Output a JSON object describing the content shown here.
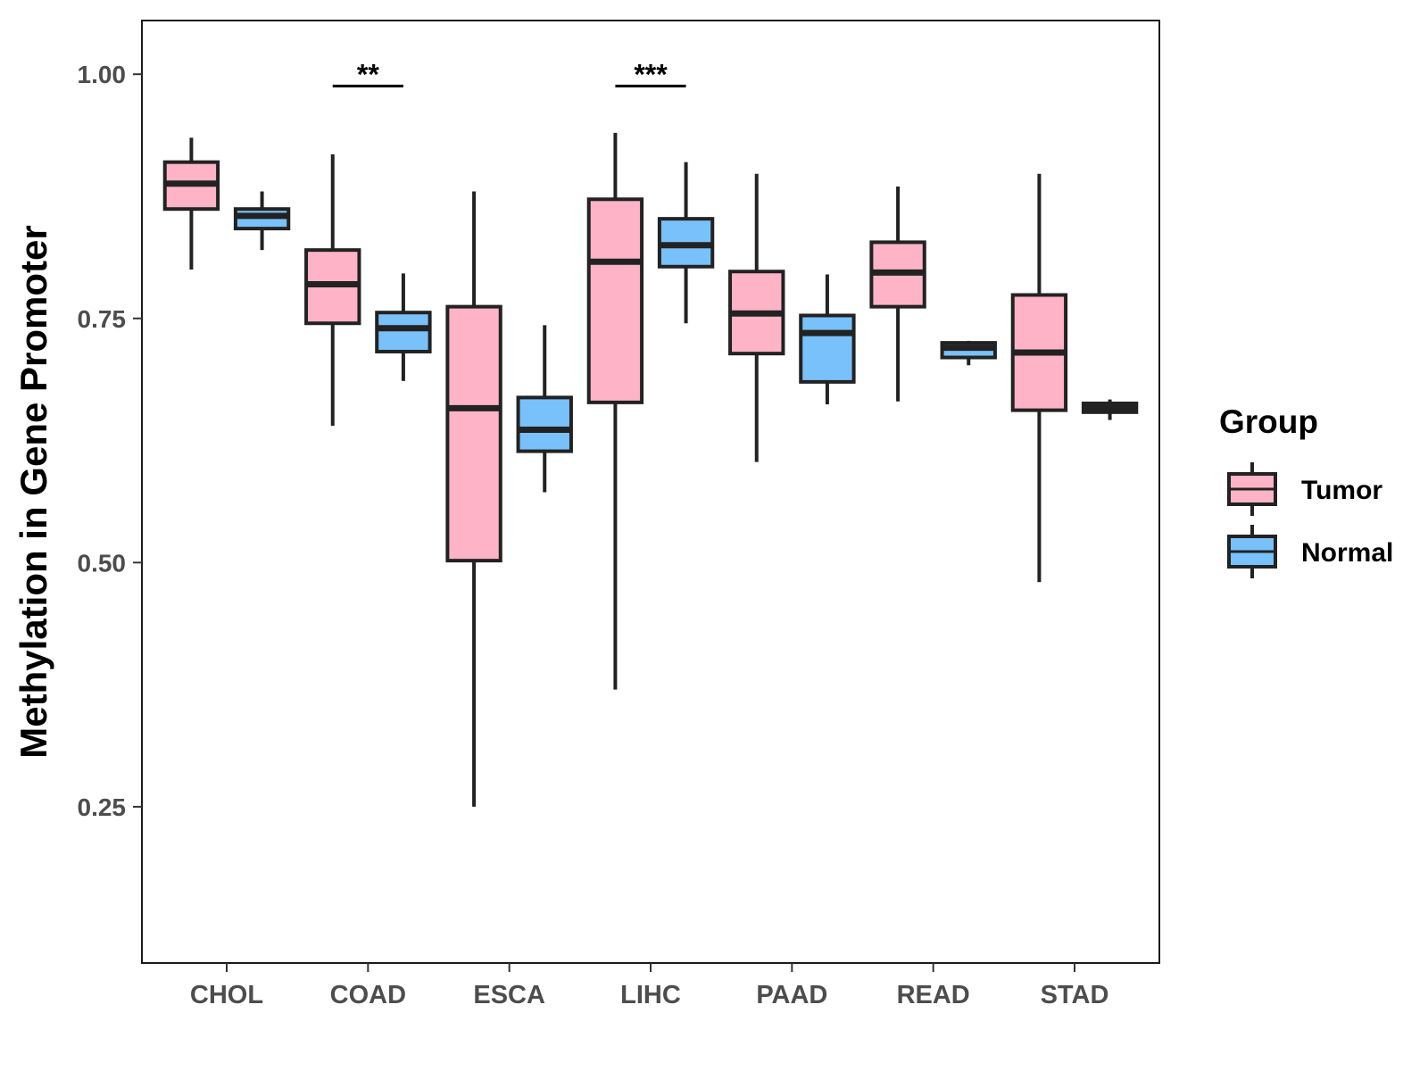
{
  "chart_data": {
    "type": "boxplot",
    "title": "",
    "xlabel": "",
    "ylabel": "Methylation in Gene Promoter",
    "ylim": [
      0.09,
      1.055
    ],
    "yticks": [
      0.25,
      0.5,
      0.75,
      1.0
    ],
    "ytick_labels": [
      "0.25",
      "0.50",
      "0.75",
      "1.00"
    ],
    "categories": [
      "CHOL",
      "COAD",
      "ESCA",
      "LIHC",
      "PAAD",
      "READ",
      "STAD"
    ],
    "series": [
      {
        "name": "Tumor",
        "color": "#FFB3C6",
        "boxes": [
          {
            "min": 0.8,
            "q1": 0.862,
            "median": 0.888,
            "q3": 0.91,
            "max": 0.935
          },
          {
            "min": 0.64,
            "q1": 0.745,
            "median": 0.785,
            "q3": 0.82,
            "max": 0.918
          },
          {
            "min": 0.25,
            "q1": 0.502,
            "median": 0.658,
            "q3": 0.762,
            "max": 0.88
          },
          {
            "min": 0.37,
            "q1": 0.664,
            "median": 0.808,
            "q3": 0.872,
            "max": 0.94
          },
          {
            "min": 0.603,
            "q1": 0.714,
            "median": 0.755,
            "q3": 0.798,
            "max": 0.898
          },
          {
            "min": 0.665,
            "q1": 0.762,
            "median": 0.797,
            "q3": 0.828,
            "max": 0.885
          },
          {
            "min": 0.48,
            "q1": 0.656,
            "median": 0.715,
            "q3": 0.774,
            "max": 0.898
          }
        ]
      },
      {
        "name": "Normal",
        "color": "#78C1FA",
        "boxes": [
          {
            "min": 0.82,
            "q1": 0.842,
            "median": 0.855,
            "q3": 0.862,
            "max": 0.88
          },
          {
            "min": 0.686,
            "q1": 0.716,
            "median": 0.74,
            "q3": 0.756,
            "max": 0.796
          },
          {
            "min": 0.572,
            "q1": 0.614,
            "median": 0.636,
            "q3": 0.669,
            "max": 0.743
          },
          {
            "min": 0.745,
            "q1": 0.803,
            "median": 0.825,
            "q3": 0.852,
            "max": 0.91
          },
          {
            "min": 0.662,
            "q1": 0.685,
            "median": 0.735,
            "q3": 0.753,
            "max": 0.795
          },
          {
            "min": 0.702,
            "q1": 0.71,
            "median": 0.72,
            "q3": 0.725,
            "max": 0.727
          },
          {
            "min": 0.646,
            "q1": 0.654,
            "median": 0.658,
            "q3": 0.663,
            "max": 0.667
          }
        ]
      }
    ],
    "annotations": [
      {
        "category": "COAD",
        "text": "**",
        "y": 0.988
      },
      {
        "category": "LIHC",
        "text": "***",
        "y": 0.988
      }
    ],
    "legend": {
      "title": "Group",
      "placement": "right",
      "items": [
        "Tumor",
        "Normal"
      ]
    },
    "grid": false
  }
}
